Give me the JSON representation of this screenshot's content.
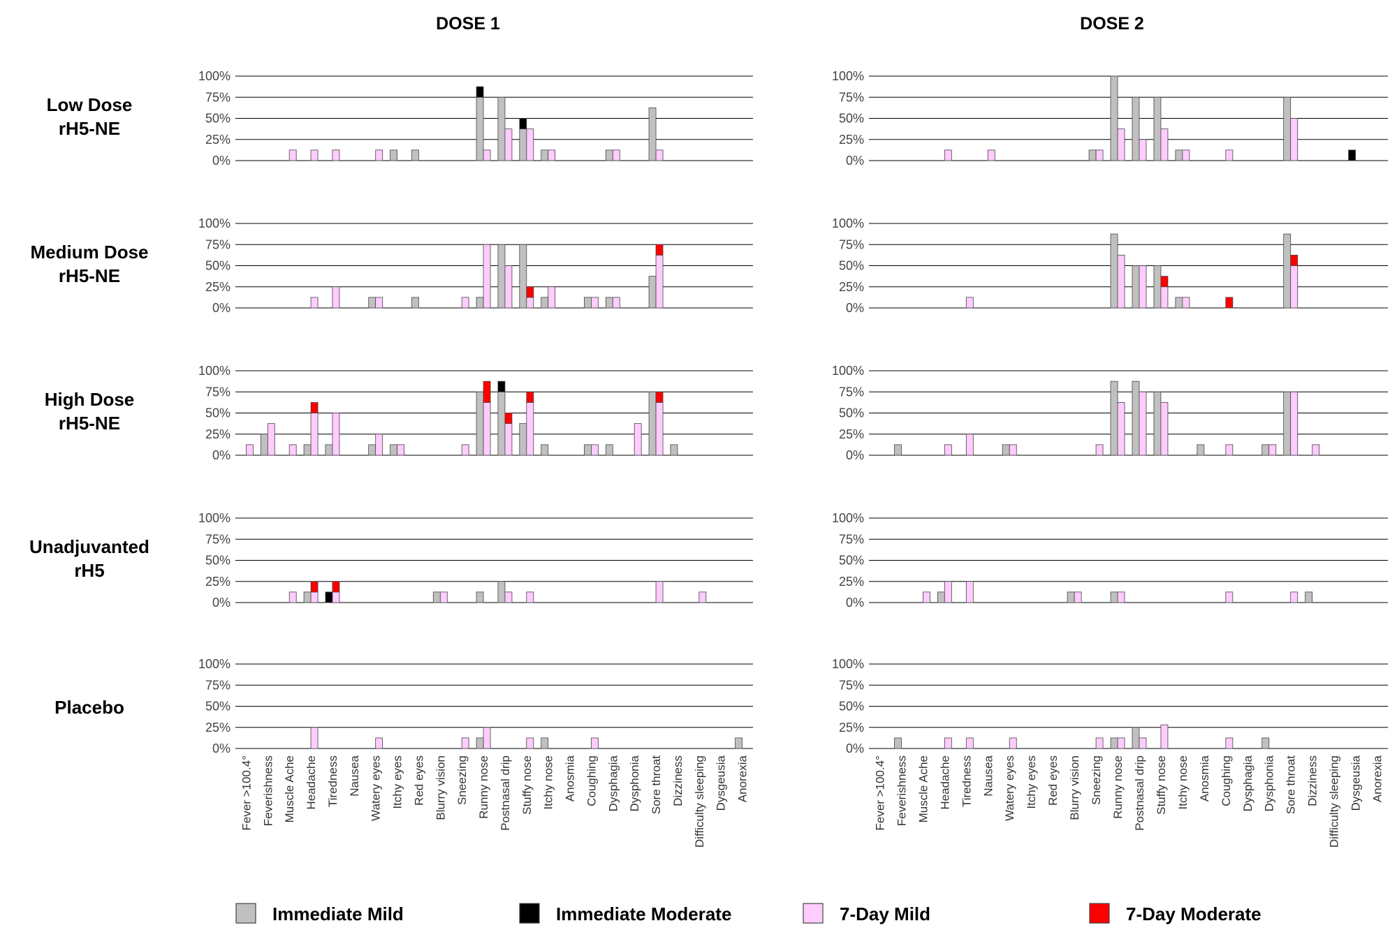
{
  "chart_data": {
    "type": "bar",
    "stacked": true,
    "panel_titles": [
      "DOSE 1",
      "DOSE 2"
    ],
    "row_labels": [
      [
        "Low Dose",
        "rH5-NE"
      ],
      [
        "Medium Dose",
        "rH5-NE"
      ],
      [
        "High Dose",
        "rH5-NE"
      ],
      [
        "Unadjuvanted",
        "rH5"
      ],
      [
        "Placebo"
      ]
    ],
    "y_ticks": [
      "100%",
      "75%",
      "50%",
      "25%",
      "0%"
    ],
    "ylim": [
      0,
      100
    ],
    "grid": true,
    "categories": [
      "Fever >100.4°",
      "Feverishness",
      "Muscle Ache",
      "Headache",
      "Tiredness",
      "Nausea",
      "Watery eyes",
      "Itchy eyes",
      "Red eyes",
      "Blurry vision",
      "Sneezing",
      "Runny nose",
      "Postnasal drip",
      "Stuffy nose",
      "Itchy nose",
      "Anosmia",
      "Coughing",
      "Dysphagia",
      "Dysphonia",
      "Sore throat",
      "Dizziness",
      "Difficulty sleeping",
      "Dysgeusia",
      "Anorexia"
    ],
    "legend": [
      {
        "name": "Immediate Mild",
        "color": "#c0c0c0"
      },
      {
        "name": "Immediate Moderate",
        "color": "#000000"
      },
      {
        "name": "7-Day Mild",
        "color": "#ffccff"
      },
      {
        "name": "7-Day Moderate",
        "color": "#ff0000"
      }
    ],
    "legend_position": "bottom",
    "panels": [
      {
        "dose": "DOSE 1",
        "group": "Low Dose rH5-NE",
        "immediate_mild": [
          0,
          0,
          0,
          0,
          0,
          0,
          0,
          12.5,
          12.5,
          0,
          0,
          75,
          75,
          37.5,
          12.5,
          0,
          0,
          12.5,
          0,
          62.5,
          0,
          0,
          0,
          0
        ],
        "immediate_moderate": [
          0,
          0,
          0,
          0,
          0,
          0,
          0,
          0,
          0,
          0,
          0,
          12.5,
          0,
          12.5,
          0,
          0,
          0,
          0,
          0,
          0,
          0,
          0,
          0,
          0
        ],
        "seven_day_mild": [
          0,
          0,
          12.5,
          12.5,
          12.5,
          0,
          12.5,
          0,
          0,
          0,
          0,
          12.5,
          37.5,
          37.5,
          12.5,
          0,
          0,
          12.5,
          0,
          12.5,
          0,
          0,
          0,
          0
        ],
        "seven_day_moderate": [
          0,
          0,
          0,
          0,
          0,
          0,
          0,
          0,
          0,
          0,
          0,
          0,
          0,
          0,
          0,
          0,
          0,
          0,
          0,
          0,
          0,
          0,
          0,
          0
        ]
      },
      {
        "dose": "DOSE 2",
        "group": "Low Dose rH5-NE",
        "immediate_mild": [
          0,
          0,
          0,
          0,
          0,
          0,
          0,
          0,
          0,
          0,
          12.5,
          100,
          75,
          75,
          12.5,
          0,
          0,
          0,
          0,
          75,
          0,
          0,
          0,
          0
        ],
        "immediate_moderate": [
          0,
          0,
          0,
          0,
          0,
          0,
          0,
          0,
          0,
          0,
          0,
          0,
          0,
          0,
          0,
          0,
          0,
          0,
          0,
          0,
          0,
          0,
          12.5,
          0
        ],
        "seven_day_mild": [
          0,
          0,
          0,
          12.5,
          0,
          12.5,
          0,
          0,
          0,
          0,
          12.5,
          37.5,
          25,
          37.5,
          12.5,
          0,
          12.5,
          0,
          0,
          50,
          0,
          0,
          0,
          0
        ],
        "seven_day_moderate": [
          0,
          0,
          0,
          0,
          0,
          0,
          0,
          0,
          0,
          0,
          0,
          0,
          0,
          0,
          0,
          0,
          0,
          0,
          0,
          0,
          0,
          0,
          0,
          0
        ]
      },
      {
        "dose": "DOSE 1",
        "group": "Medium Dose rH5-NE",
        "immediate_mild": [
          0,
          0,
          0,
          0,
          0,
          0,
          12.5,
          0,
          12.5,
          0,
          0,
          12.5,
          75,
          75,
          12.5,
          0,
          12.5,
          12.5,
          0,
          37.5,
          0,
          0,
          0,
          0
        ],
        "immediate_moderate": [
          0,
          0,
          0,
          0,
          0,
          0,
          0,
          0,
          0,
          0,
          0,
          0,
          0,
          0,
          0,
          0,
          0,
          0,
          0,
          0,
          0,
          0,
          0,
          0
        ],
        "seven_day_mild": [
          0,
          0,
          0,
          12.5,
          25,
          0,
          12.5,
          0,
          0,
          0,
          12.5,
          75,
          50,
          12.5,
          25,
          0,
          12.5,
          12.5,
          0,
          62.5,
          0,
          0,
          0,
          0
        ],
        "seven_day_moderate": [
          0,
          0,
          0,
          0,
          0,
          0,
          0,
          0,
          0,
          0,
          0,
          0,
          0,
          12.5,
          0,
          0,
          0,
          0,
          0,
          12.5,
          0,
          0,
          0,
          0
        ]
      },
      {
        "dose": "DOSE 2",
        "group": "Medium Dose rH5-NE",
        "immediate_mild": [
          0,
          0,
          0,
          0,
          0,
          0,
          0,
          0,
          0,
          0,
          0,
          87.5,
          50,
          50,
          12.5,
          0,
          0,
          0,
          0,
          87.5,
          0,
          0,
          0,
          0
        ],
        "immediate_moderate": [
          0,
          0,
          0,
          0,
          0,
          0,
          0,
          0,
          0,
          0,
          0,
          0,
          0,
          0,
          0,
          0,
          0,
          0,
          0,
          0,
          0,
          0,
          0,
          0
        ],
        "seven_day_mild": [
          0,
          0,
          0,
          0,
          12.5,
          0,
          0,
          0,
          0,
          0,
          0,
          62.5,
          50,
          25,
          12.5,
          0,
          0,
          0,
          0,
          50,
          0,
          0,
          0,
          0
        ],
        "seven_day_moderate": [
          0,
          0,
          0,
          0,
          0,
          0,
          0,
          0,
          0,
          0,
          0,
          0,
          0,
          12.5,
          0,
          0,
          12.5,
          0,
          0,
          12.5,
          0,
          0,
          0,
          0
        ]
      },
      {
        "dose": "DOSE 1",
        "group": "High Dose rH5-NE",
        "immediate_mild": [
          0,
          25,
          0,
          12.5,
          12.5,
          0,
          12.5,
          12.5,
          0,
          0,
          0,
          75,
          75,
          37.5,
          12.5,
          0,
          12.5,
          12.5,
          0,
          75,
          12.5,
          0,
          0,
          0
        ],
        "immediate_moderate": [
          0,
          0,
          0,
          0,
          0,
          0,
          0,
          0,
          0,
          0,
          0,
          0,
          12.5,
          0,
          0,
          0,
          0,
          0,
          0,
          0,
          0,
          0,
          0,
          0
        ],
        "seven_day_mild": [
          12.5,
          37.5,
          12.5,
          50,
          50,
          0,
          25,
          12.5,
          0,
          0,
          12.5,
          62.5,
          37.5,
          62.5,
          0,
          0,
          12.5,
          0,
          37.5,
          62.5,
          0,
          0,
          0,
          0
        ],
        "seven_day_moderate": [
          0,
          0,
          0,
          12.5,
          0,
          0,
          0,
          0,
          0,
          0,
          0,
          25,
          12.5,
          12.5,
          0,
          0,
          0,
          0,
          0,
          12.5,
          0,
          0,
          0,
          0
        ]
      },
      {
        "dose": "DOSE 2",
        "group": "High Dose rH5-NE",
        "immediate_mild": [
          0,
          12.5,
          0,
          0,
          0,
          0,
          12.5,
          0,
          0,
          0,
          0,
          87.5,
          87.5,
          75,
          0,
          12.5,
          0,
          0,
          12.5,
          75,
          0,
          0,
          0,
          0
        ],
        "immediate_moderate": [
          0,
          0,
          0,
          0,
          0,
          0,
          0,
          0,
          0,
          0,
          0,
          0,
          0,
          0,
          0,
          0,
          0,
          0,
          0,
          0,
          0,
          0,
          0,
          0
        ],
        "seven_day_mild": [
          0,
          0,
          0,
          12.5,
          25,
          0,
          12.5,
          0,
          0,
          0,
          12.5,
          62.5,
          75,
          62.5,
          0,
          0,
          12.5,
          0,
          12.5,
          75,
          12.5,
          0,
          0,
          0
        ],
        "seven_day_moderate": [
          0,
          0,
          0,
          0,
          0,
          0,
          0,
          0,
          0,
          0,
          0,
          0,
          0,
          0,
          0,
          0,
          0,
          0,
          0,
          0,
          0,
          0,
          0,
          0
        ]
      },
      {
        "dose": "DOSE 1",
        "group": "Unadjuvanted rH5",
        "immediate_mild": [
          0,
          0,
          0,
          12.5,
          0,
          0,
          0,
          0,
          0,
          12.5,
          0,
          12.5,
          25,
          0,
          0,
          0,
          0,
          0,
          0,
          0,
          0,
          0,
          0,
          0
        ],
        "immediate_moderate": [
          0,
          0,
          0,
          0,
          12.5,
          0,
          0,
          0,
          0,
          0,
          0,
          0,
          0,
          0,
          0,
          0,
          0,
          0,
          0,
          0,
          0,
          0,
          0,
          0
        ],
        "seven_day_mild": [
          0,
          0,
          12.5,
          12.5,
          12.5,
          0,
          0,
          0,
          0,
          12.5,
          0,
          0,
          12.5,
          12.5,
          0,
          0,
          0,
          0,
          0,
          25,
          0,
          12.5,
          0,
          0
        ],
        "seven_day_moderate": [
          0,
          0,
          0,
          12.5,
          12.5,
          0,
          0,
          0,
          0,
          0,
          0,
          0,
          0,
          0,
          0,
          0,
          0,
          0,
          0,
          0,
          0,
          0,
          0,
          0
        ]
      },
      {
        "dose": "DOSE 2",
        "group": "Unadjuvanted rH5",
        "immediate_mild": [
          0,
          0,
          0,
          12.5,
          0,
          0,
          0,
          0,
          0,
          12.5,
          0,
          12.5,
          0,
          0,
          0,
          0,
          0,
          0,
          0,
          0,
          12.5,
          0,
          0,
          0
        ],
        "immediate_moderate": [
          0,
          0,
          0,
          0,
          0,
          0,
          0,
          0,
          0,
          0,
          0,
          0,
          0,
          0,
          0,
          0,
          0,
          0,
          0,
          0,
          0,
          0,
          0,
          0
        ],
        "seven_day_mild": [
          0,
          0,
          12.5,
          25,
          25,
          0,
          0,
          0,
          0,
          12.5,
          0,
          12.5,
          0,
          0,
          0,
          0,
          12.5,
          0,
          0,
          12.5,
          0,
          0,
          0,
          0
        ],
        "seven_day_moderate": [
          0,
          0,
          0,
          0,
          0,
          0,
          0,
          0,
          0,
          0,
          0,
          0,
          0,
          0,
          0,
          0,
          0,
          0,
          0,
          0,
          0,
          0,
          0,
          0
        ]
      },
      {
        "dose": "DOSE 1",
        "group": "Placebo",
        "immediate_mild": [
          0,
          0,
          0,
          0,
          0,
          0,
          0,
          0,
          0,
          0,
          0,
          12.5,
          0,
          0,
          12.5,
          0,
          0,
          0,
          0,
          0,
          0,
          0,
          0,
          12.5
        ],
        "immediate_moderate": [
          0,
          0,
          0,
          0,
          0,
          0,
          0,
          0,
          0,
          0,
          0,
          0,
          0,
          0,
          0,
          0,
          0,
          0,
          0,
          0,
          0,
          0,
          0,
          0
        ],
        "seven_day_mild": [
          0,
          0,
          0,
          25,
          0,
          0,
          12.5,
          0,
          0,
          0,
          12.5,
          25,
          0,
          12.5,
          0,
          0,
          12.5,
          0,
          0,
          0,
          0,
          0,
          0,
          0
        ],
        "seven_day_moderate": [
          0,
          0,
          0,
          0,
          0,
          0,
          0,
          0,
          0,
          0,
          0,
          0,
          0,
          0,
          0,
          0,
          0,
          0,
          0,
          0,
          0,
          0,
          0,
          0
        ]
      },
      {
        "dose": "DOSE 2",
        "group": "Placebo",
        "immediate_mild": [
          0,
          12.5,
          0,
          0,
          0,
          0,
          0,
          0,
          0,
          0,
          0,
          12.5,
          25,
          0,
          0,
          0,
          0,
          0,
          12.5,
          0,
          0,
          0,
          0,
          0
        ],
        "immediate_moderate": [
          0,
          0,
          0,
          0,
          0,
          0,
          0,
          0,
          0,
          0,
          0,
          0,
          0,
          0,
          0,
          0,
          0,
          0,
          0,
          0,
          0,
          0,
          0,
          0
        ],
        "seven_day_mild": [
          0,
          0,
          0,
          12.5,
          12.5,
          0,
          12.5,
          0,
          0,
          0,
          12.5,
          12.5,
          12.5,
          28,
          0,
          0,
          12.5,
          0,
          0,
          0,
          0,
          0,
          0,
          0
        ],
        "seven_day_moderate": [
          0,
          0,
          0,
          0,
          0,
          0,
          0,
          0,
          0,
          0,
          0,
          0,
          0,
          0,
          0,
          0,
          0,
          0,
          0,
          0,
          0,
          0,
          0,
          0
        ]
      }
    ]
  }
}
